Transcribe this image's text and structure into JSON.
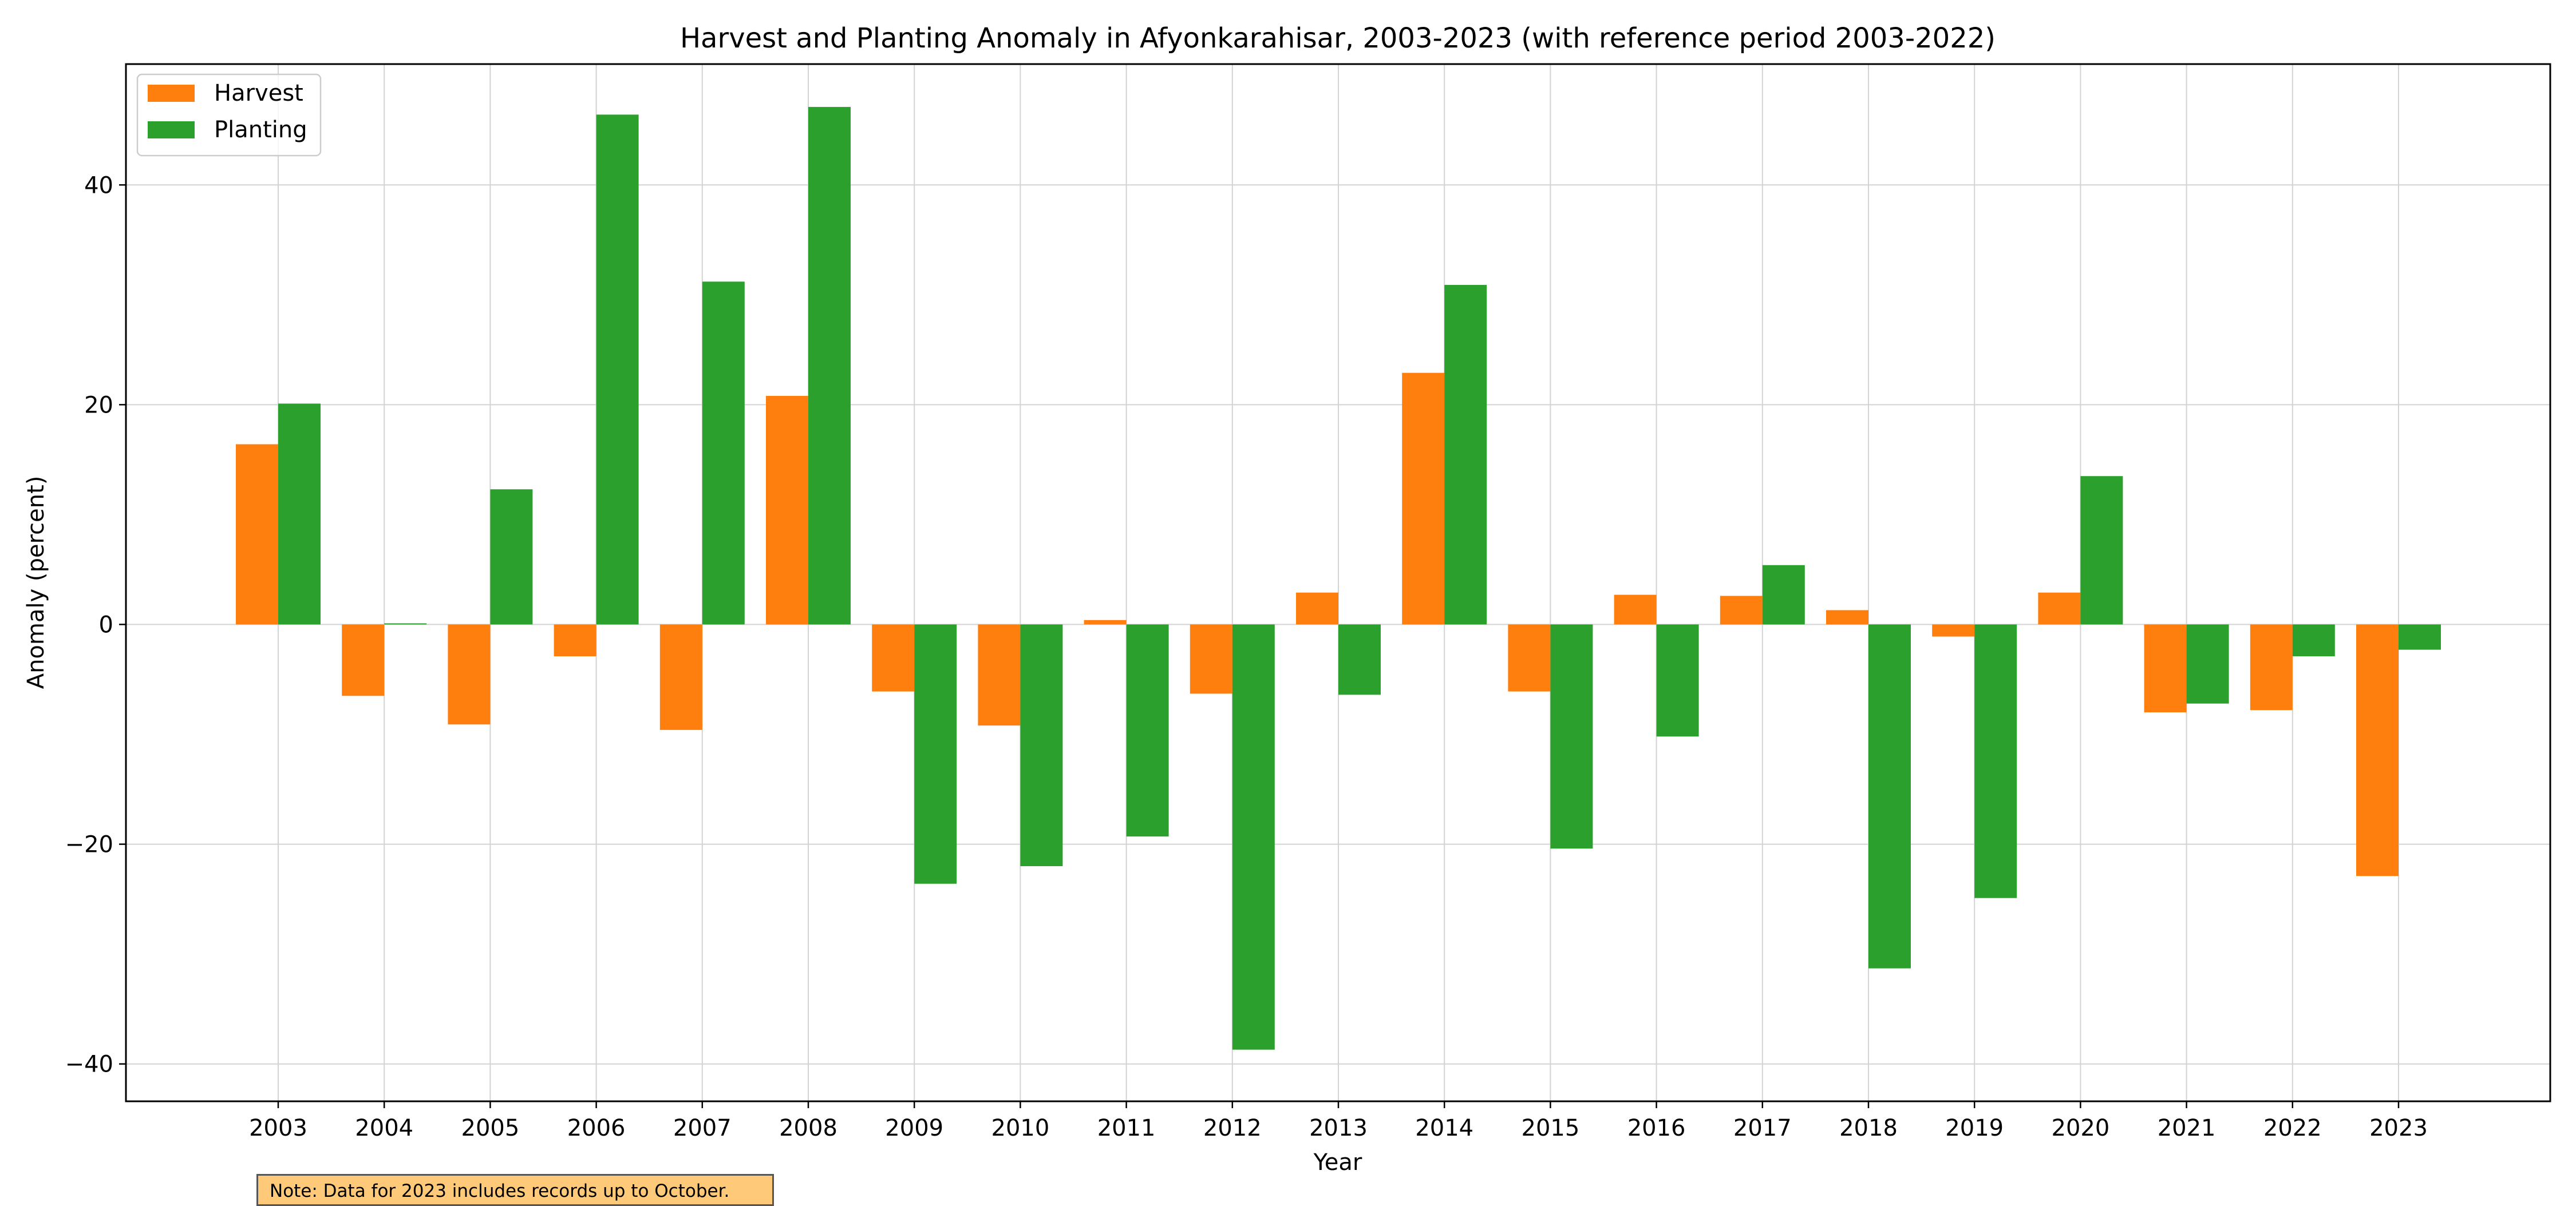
{
  "chart_data": {
    "type": "bar",
    "title": "Harvest and Planting Anomaly in Afyonkarahisar, 2003-2023 (with reference period 2003-2022)",
    "xlabel": "Year",
    "ylabel": "Anomaly (percent)",
    "categories": [
      "2003",
      "2004",
      "2005",
      "2006",
      "2007",
      "2008",
      "2009",
      "2010",
      "2011",
      "2012",
      "2013",
      "2014",
      "2015",
      "2016",
      "2017",
      "2018",
      "2019",
      "2020",
      "2021",
      "2022",
      "2023"
    ],
    "series": [
      {
        "name": "Harvest",
        "color": "#ff7f0e",
        "values": [
          16.4,
          -6.5,
          -9.1,
          -2.9,
          -9.6,
          20.8,
          -6.1,
          -9.2,
          0.4,
          -6.3,
          2.9,
          22.9,
          -6.1,
          2.7,
          2.6,
          1.3,
          -1.1,
          2.9,
          -8.0,
          -7.8,
          -22.9
        ]
      },
      {
        "name": "Planting",
        "color": "#2ca02c",
        "values": [
          20.1,
          0.1,
          12.3,
          46.4,
          31.2,
          47.1,
          -23.6,
          -22.0,
          -19.3,
          -38.7,
          -6.4,
          30.9,
          -20.4,
          -10.2,
          5.4,
          -31.3,
          -24.9,
          13.5,
          -7.2,
          -2.9,
          -2.3
        ]
      }
    ],
    "yticks": [
      -40,
      -20,
      0,
      20,
      40
    ],
    "ytick_labels": [
      "−40",
      "−20",
      "0",
      "20",
      "40"
    ],
    "ylim": [
      -43.4,
      51.0
    ],
    "grid": true,
    "legend_position": "upper left"
  },
  "note": "Note: Data for 2023 includes records up to October."
}
